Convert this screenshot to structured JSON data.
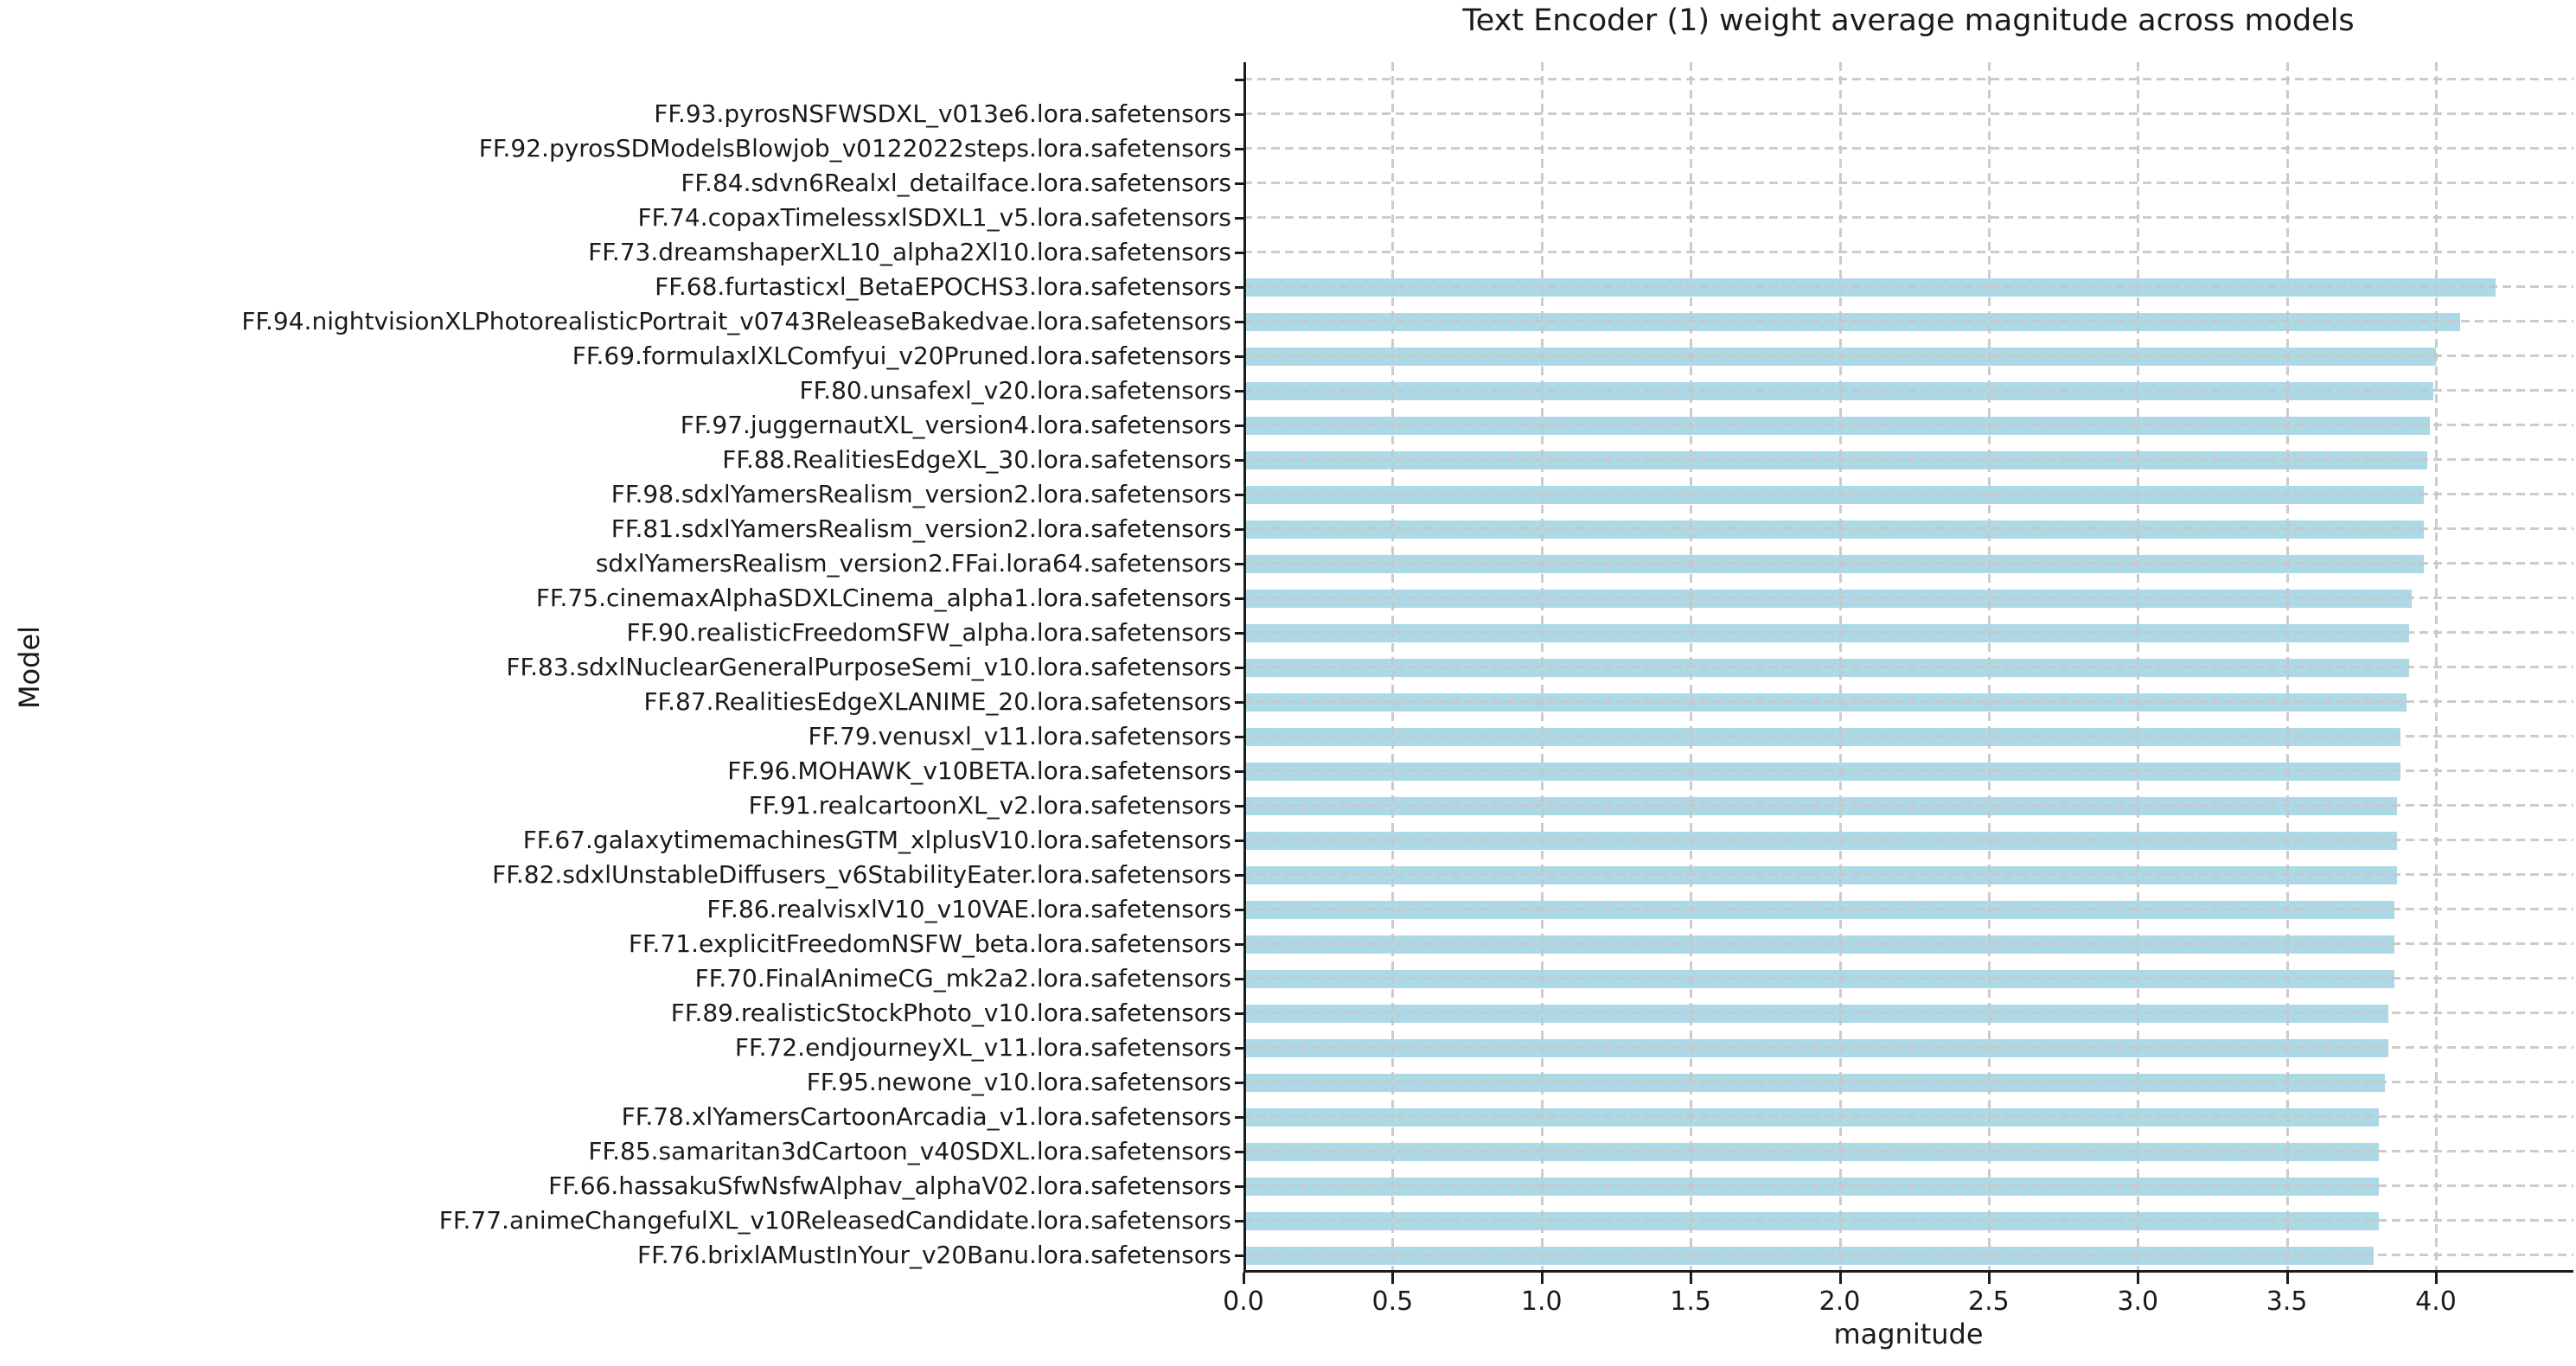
{
  "chart_data": {
    "type": "bar",
    "orientation": "horizontal",
    "title": "Text Encoder (1) weight average magnitude across models",
    "xlabel": "magnitude",
    "ylabel": "Model",
    "xlim": [
      0,
      4.46
    ],
    "xticks": [
      0,
      0.5,
      1.0,
      1.5,
      2.0,
      2.5,
      3.0,
      3.5,
      4.0
    ],
    "grid": true,
    "legend": false,
    "bar_color": "#ADD8E6",
    "grid_color": "#c7c7c7",
    "spine_color": "#1c1c1c",
    "categories": [
      "",
      "FF.93.pyrosNSFWSDXL_v013e6.lora.safetensors",
      "FF.92.pyrosSDModelsBlowjob_v0122022steps.lora.safetensors",
      "FF.84.sdvn6Realxl_detailface.lora.safetensors",
      "FF.74.copaxTimelessxlSDXL1_v5.lora.safetensors",
      "FF.73.dreamshaperXL10_alpha2Xl10.lora.safetensors",
      "FF.68.furtasticxl_BetaEPOCHS3.lora.safetensors",
      "FF.94.nightvisionXLPhotorealisticPortrait_v0743ReleaseBakedvae.lora.safetensors",
      "FF.69.formulaxlXLComfyui_v20Pruned.lora.safetensors",
      "FF.80.unsafexl_v20.lora.safetensors",
      "FF.97.juggernautXL_version4.lora.safetensors",
      "FF.88.RealitiesEdgeXL_30.lora.safetensors",
      "FF.98.sdxlYamersRealism_version2.lora.safetensors",
      "FF.81.sdxlYamersRealism_version2.lora.safetensors",
      "sdxlYamersRealism_version2.FFai.lora64.safetensors",
      "FF.75.cinemaxAlphaSDXLCinema_alpha1.lora.safetensors",
      "FF.90.realisticFreedomSFW_alpha.lora.safetensors",
      "FF.83.sdxlNuclearGeneralPurposeSemi_v10.lora.safetensors",
      "FF.87.RealitiesEdgeXLANIME_20.lora.safetensors",
      "FF.79.venusxl_v11.lora.safetensors",
      "FF.96.MOHAWK_v10BETA.lora.safetensors",
      "FF.91.realcartoonXL_v2.lora.safetensors",
      "FF.67.galaxytimemachinesGTM_xlplusV10.lora.safetensors",
      "FF.82.sdxlUnstableDiffusers_v6StabilityEater.lora.safetensors",
      "FF.86.realvisxlV10_v10VAE.lora.safetensors",
      "FF.71.explicitFreedomNSFW_beta.lora.safetensors",
      "FF.70.FinalAnimeCG_mk2a2.lora.safetensors",
      "FF.89.realisticStockPhoto_v10.lora.safetensors",
      "FF.72.endjourneyXL_v11.lora.safetensors",
      "FF.95.newone_v10.lora.safetensors",
      "FF.78.xlYamersCartoonArcadia_v1.lora.safetensors",
      "FF.85.samaritan3dCartoon_v40SDXL.lora.safetensors",
      "FF.66.hassakuSfwNsfwAlphav_alphaV02.lora.safetensors",
      "FF.77.animeChangefulXL_v10ReleasedCandidate.lora.safetensors",
      "FF.76.brixlAMustInYour_v20Banu.lora.safetensors"
    ],
    "values": [
      0,
      0,
      0,
      0,
      0,
      0,
      4.2,
      4.08,
      4.0,
      3.99,
      3.98,
      3.97,
      3.96,
      3.96,
      3.96,
      3.92,
      3.91,
      3.91,
      3.9,
      3.88,
      3.88,
      3.87,
      3.87,
      3.87,
      3.86,
      3.86,
      3.86,
      3.84,
      3.84,
      3.83,
      3.81,
      3.81,
      3.81,
      3.81,
      3.79
    ]
  }
}
